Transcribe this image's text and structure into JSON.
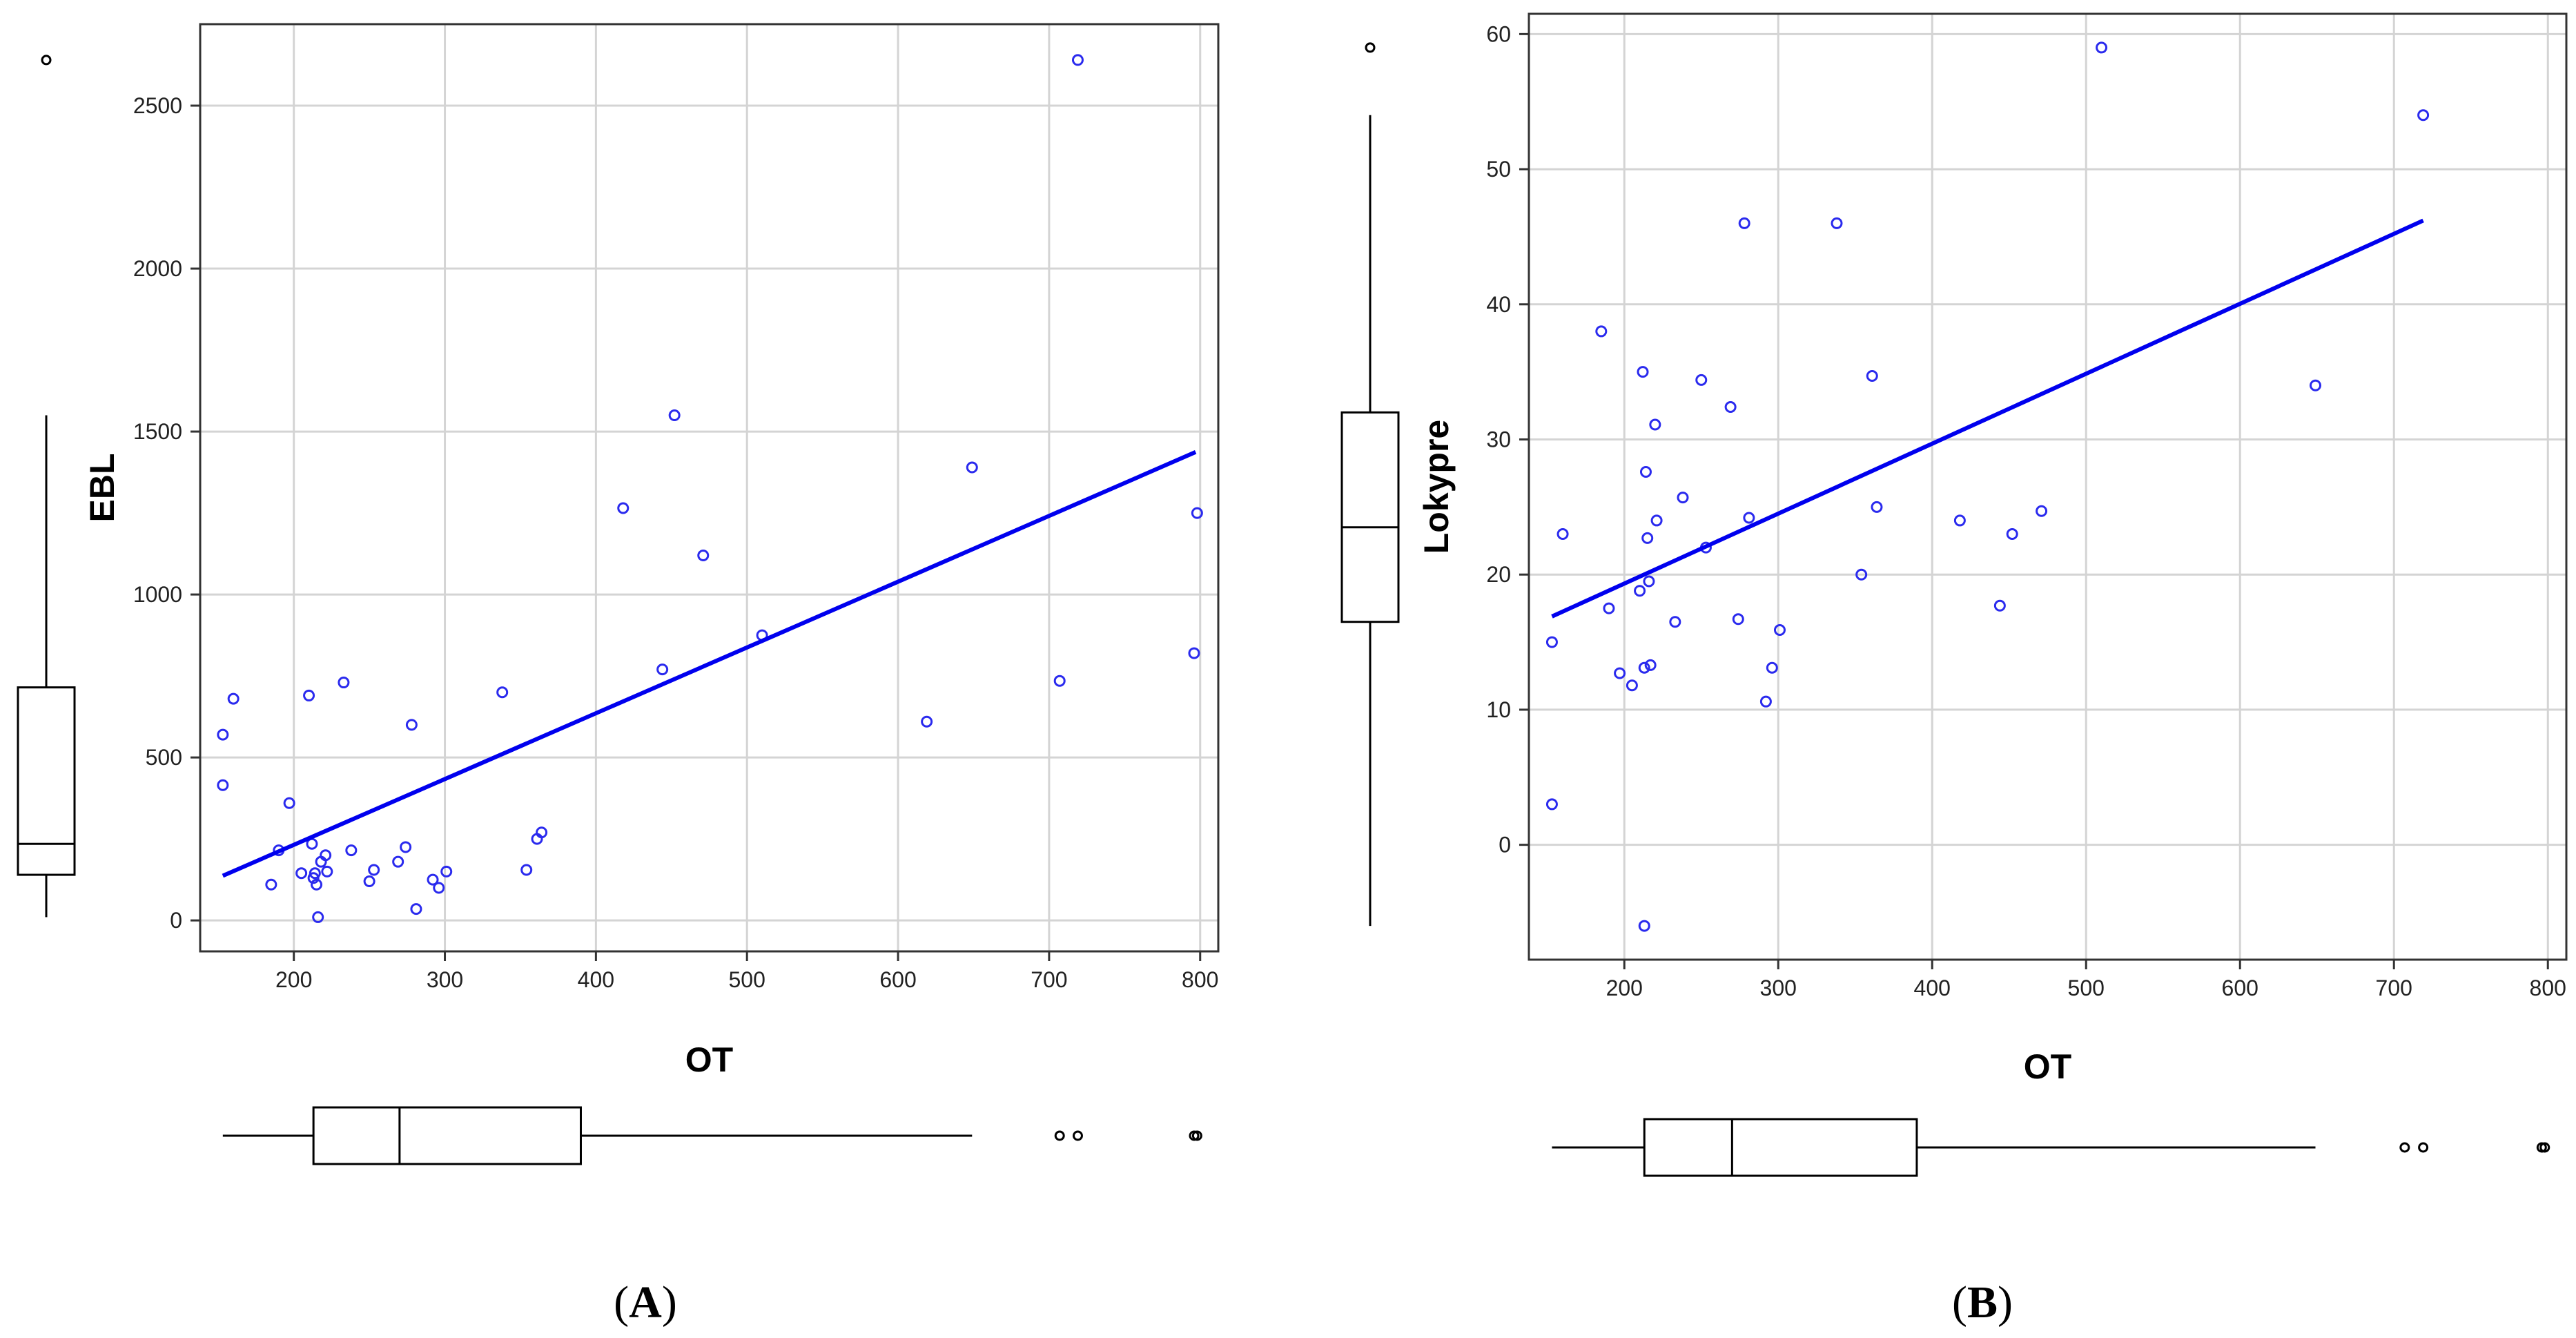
{
  "colors": {
    "points": "#2a2aee",
    "regression": "#0000ee",
    "grid": "#d4d4d4",
    "frame": "#333333"
  },
  "chart_data": [
    {
      "type": "scatter",
      "panel_label": {
        "open": "(",
        "letter": "A",
        "close": ")"
      },
      "xlabel": "OT",
      "ylabel": "EBL",
      "xlim": [
        138,
        812
      ],
      "ylim": [
        -95,
        2750
      ],
      "xticks": [
        200,
        300,
        400,
        500,
        600,
        700,
        800
      ],
      "yticks": [
        0,
        500,
        1000,
        1500,
        2000,
        2500
      ],
      "grid": true,
      "regression_line": {
        "x": [
          153,
          797
        ],
        "y": [
          137,
          1437
        ]
      },
      "points": [
        {
          "x": 153,
          "y": 570
        },
        {
          "x": 153,
          "y": 415
        },
        {
          "x": 160,
          "y": 680
        },
        {
          "x": 185,
          "y": 110
        },
        {
          "x": 190,
          "y": 215
        },
        {
          "x": 197,
          "y": 360
        },
        {
          "x": 205,
          "y": 145
        },
        {
          "x": 210,
          "y": 690
        },
        {
          "x": 212,
          "y": 235
        },
        {
          "x": 213,
          "y": 130
        },
        {
          "x": 214,
          "y": 145
        },
        {
          "x": 215,
          "y": 110
        },
        {
          "x": 216,
          "y": 10
        },
        {
          "x": 218,
          "y": 180
        },
        {
          "x": 221,
          "y": 200
        },
        {
          "x": 222,
          "y": 150
        },
        {
          "x": 233,
          "y": 730
        },
        {
          "x": 238,
          "y": 215
        },
        {
          "x": 250,
          "y": 120
        },
        {
          "x": 253,
          "y": 155
        },
        {
          "x": 269,
          "y": 180
        },
        {
          "x": 274,
          "y": 225
        },
        {
          "x": 278,
          "y": 600
        },
        {
          "x": 281,
          "y": 35
        },
        {
          "x": 292,
          "y": 125
        },
        {
          "x": 296,
          "y": 100
        },
        {
          "x": 301,
          "y": 150
        },
        {
          "x": 338,
          "y": 700
        },
        {
          "x": 354,
          "y": 155
        },
        {
          "x": 361,
          "y": 250
        },
        {
          "x": 364,
          "y": 270
        },
        {
          "x": 418,
          "y": 1265
        },
        {
          "x": 444,
          "y": 770
        },
        {
          "x": 452,
          "y": 1550
        },
        {
          "x": 471,
          "y": 1120
        },
        {
          "x": 510,
          "y": 875
        },
        {
          "x": 619,
          "y": 610
        },
        {
          "x": 649,
          "y": 1390
        },
        {
          "x": 707,
          "y": 735
        },
        {
          "x": 719,
          "y": 2640
        },
        {
          "x": 796,
          "y": 820
        },
        {
          "x": 798,
          "y": 1250
        }
      ],
      "x_boxplot": {
        "whisker_low": 153,
        "q1": 213,
        "median": 270,
        "q3": 390,
        "whisker_high": 649,
        "outliers": [
          707,
          719,
          796,
          798
        ]
      },
      "y_boxplot": {
        "whisker_low": 10,
        "q1": 140,
        "median": 235,
        "q3": 715,
        "whisker_high": 1550,
        "outliers": [
          2640
        ]
      }
    },
    {
      "type": "scatter",
      "panel_label": {
        "open": "(",
        "letter": "B",
        "close": ")"
      },
      "xlabel": "OT",
      "ylabel": "Lokypre",
      "xlim": [
        138,
        812
      ],
      "ylim": [
        -8.5,
        61.5
      ],
      "xticks": [
        200,
        300,
        400,
        500,
        600,
        700,
        800
      ],
      "yticks": [
        0,
        10,
        20,
        30,
        40,
        50,
        60
      ],
      "grid": true,
      "regression_line": {
        "x": [
          153,
          719
        ],
        "y": [
          16.9,
          46.2
        ]
      },
      "points": [
        {
          "x": 153,
          "y": 15
        },
        {
          "x": 153,
          "y": 3
        },
        {
          "x": 160,
          "y": 23
        },
        {
          "x": 185,
          "y": 38
        },
        {
          "x": 190,
          "y": 17.5
        },
        {
          "x": 197,
          "y": 12.7
        },
        {
          "x": 205,
          "y": 11.8
        },
        {
          "x": 210,
          "y": 18.8
        },
        {
          "x": 212,
          "y": 35
        },
        {
          "x": 213,
          "y": -6
        },
        {
          "x": 213,
          "y": 13.1
        },
        {
          "x": 214,
          "y": 27.6
        },
        {
          "x": 215,
          "y": 22.7
        },
        {
          "x": 216,
          "y": 19.5
        },
        {
          "x": 217,
          "y": 13.3
        },
        {
          "x": 220,
          "y": 31.1
        },
        {
          "x": 221,
          "y": 24
        },
        {
          "x": 233,
          "y": 16.5
        },
        {
          "x": 238,
          "y": 25.7
        },
        {
          "x": 250,
          "y": 34.4
        },
        {
          "x": 253,
          "y": 22
        },
        {
          "x": 269,
          "y": 32.4
        },
        {
          "x": 274,
          "y": 16.7
        },
        {
          "x": 278,
          "y": 46
        },
        {
          "x": 281,
          "y": 24.2
        },
        {
          "x": 292,
          "y": 10.6
        },
        {
          "x": 296,
          "y": 13.1
        },
        {
          "x": 301,
          "y": 15.9
        },
        {
          "x": 338,
          "y": 46
        },
        {
          "x": 354,
          "y": 20
        },
        {
          "x": 361,
          "y": 34.7
        },
        {
          "x": 364,
          "y": 25
        },
        {
          "x": 418,
          "y": 24
        },
        {
          "x": 444,
          "y": 17.7
        },
        {
          "x": 452,
          "y": 23
        },
        {
          "x": 471,
          "y": 24.7
        },
        {
          "x": 510,
          "y": 59
        },
        {
          "x": 649,
          "y": 34
        },
        {
          "x": 719,
          "y": 54
        }
      ],
      "x_boxplot": {
        "whisker_low": 153,
        "q1": 213,
        "median": 270,
        "q3": 390,
        "whisker_high": 649,
        "outliers": [
          707,
          719,
          796,
          798
        ]
      },
      "y_boxplot": {
        "whisker_low": -6,
        "q1": 16.5,
        "median": 23.5,
        "q3": 32,
        "whisker_high": 54,
        "outliers": [
          59
        ]
      }
    }
  ]
}
